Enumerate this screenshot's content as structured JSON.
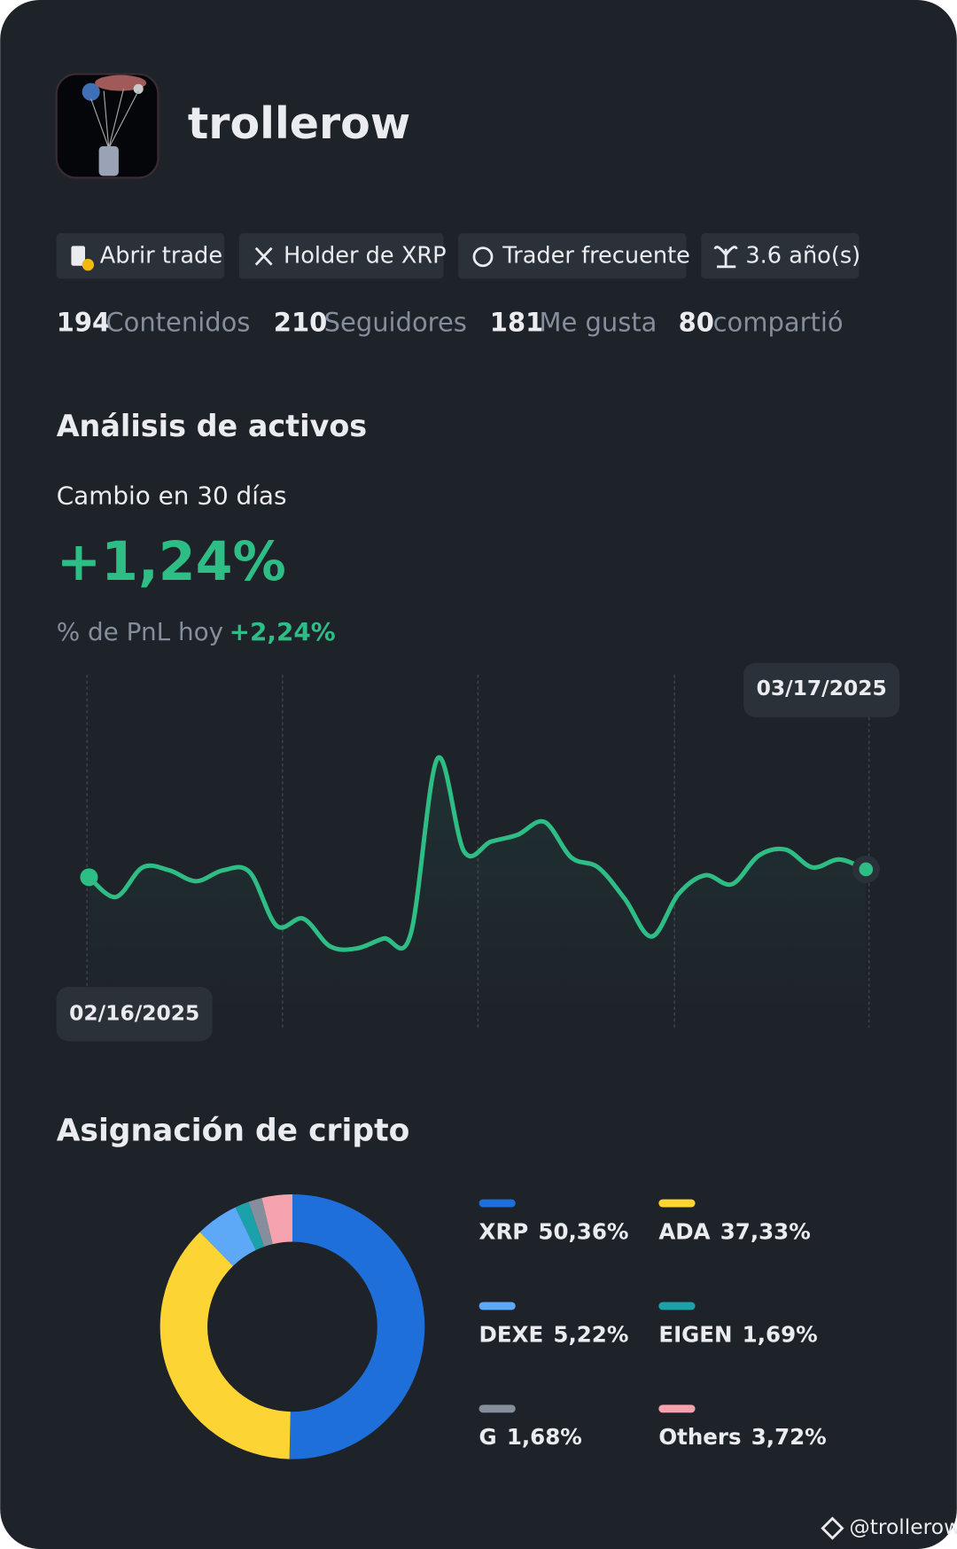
{
  "profile": {
    "username": "trollerow",
    "badges": [
      "Abrir trade",
      "Holder de XRP",
      "Trader frecuente",
      "3.6 año(s)"
    ],
    "stats": [
      {
        "value": 194,
        "label": "Contenidos"
      },
      {
        "value": 210,
        "label": "Seguidores"
      },
      {
        "value": 181,
        "label": "Me gusta"
      },
      {
        "value": 80,
        "label": "compartió"
      }
    ]
  },
  "analysis": {
    "title": "Análisis de activos",
    "change_label": "Cambio en 30 días",
    "change_value": "+1,24%",
    "pnl_label": "% de PnL hoy",
    "pnl_value": "+2,24%"
  },
  "allocation_title": "Asignación de cripto",
  "watermark": "@trollerow",
  "chart_data": [
    {
      "type": "line",
      "color": "#2ebd85",
      "ylim": [
        -15,
        20
      ],
      "categories": [
        "02/16/2025",
        null,
        null,
        null,
        null,
        null,
        null,
        null,
        null,
        null,
        null,
        null,
        null,
        null,
        null,
        null,
        null,
        null,
        null,
        null,
        null,
        null,
        null,
        null,
        null,
        null,
        null,
        null,
        null,
        "03/17/2025"
      ],
      "values": [
        0,
        -2,
        1,
        0.7,
        -0.4,
        0.7,
        0.5,
        -4.9,
        -4.2,
        -7,
        -7.2,
        -6.2,
        -5.8,
        12,
        2.6,
        3.6,
        4.3,
        5.6,
        2,
        1,
        -2.2,
        -6,
        -1.7,
        0.2,
        -0.7,
        2.2,
        2.8,
        1,
        1.8,
        0.8
      ]
    },
    {
      "type": "pie",
      "categories": [
        "XRP",
        "ADA",
        "DEXE",
        "EIGEN",
        "G",
        "Others"
      ],
      "values": [
        50.36,
        37.33,
        5.22,
        1.69,
        1.68,
        3.72
      ],
      "value_labels": [
        "50,36%",
        "37,33%",
        "5,22%",
        "1,69%",
        "1,68%",
        "3,72%"
      ],
      "colors": [
        "#1e6fd9",
        "#fcd535",
        "#5ea9f7",
        "#1aa1a9",
        "#848e9c",
        "#f6a3b0"
      ]
    }
  ]
}
